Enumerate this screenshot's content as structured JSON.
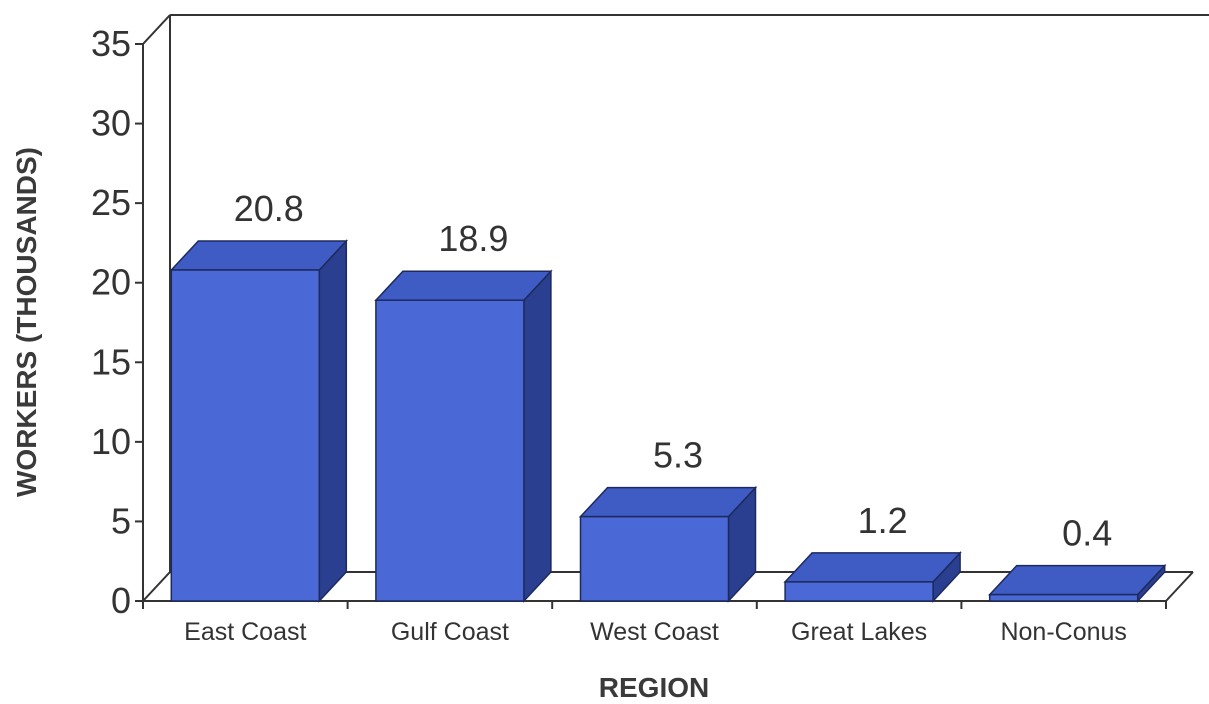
{
  "chart_data": {
    "type": "bar",
    "style": "3d",
    "categories": [
      "East Coast",
      "Gulf Coast",
      "West Coast",
      "Great Lakes",
      "Non-Conus"
    ],
    "values": [
      20.8,
      18.9,
      5.3,
      1.2,
      0.4
    ],
    "data_labels": [
      "20.8",
      "18.9",
      "5.3",
      "1.2",
      "0.4"
    ],
    "xlabel": "REGION",
    "ylabel": "WORKERS (THOUSANDS)",
    "ylim": [
      0,
      35
    ],
    "yticks": [
      0,
      5,
      10,
      15,
      20,
      25,
      30,
      35
    ],
    "grid": false,
    "legend": "none",
    "colors": {
      "bar_front": "#4a68d6",
      "bar_top": "#3f5bc4",
      "bar_side": "#2a3f8f",
      "axis": "#333333"
    }
  }
}
